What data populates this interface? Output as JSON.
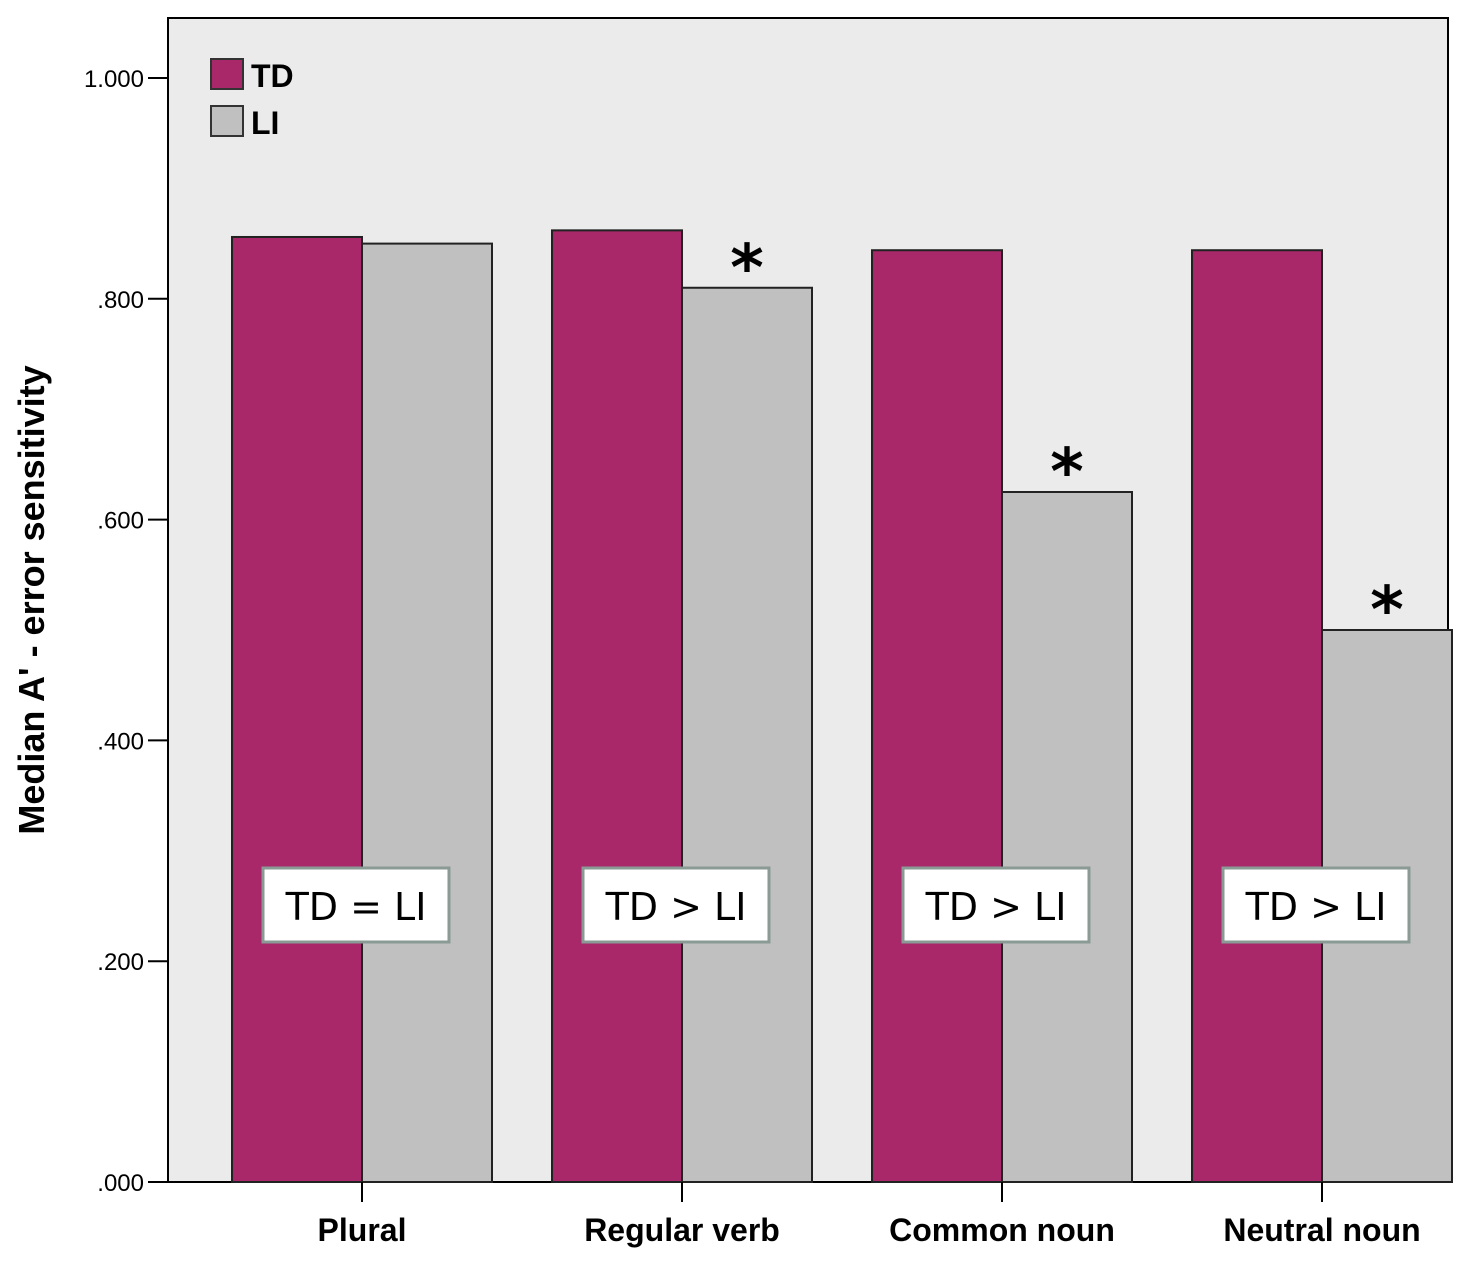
{
  "chart_data": {
    "type": "bar",
    "title": "",
    "xlabel": "",
    "ylabel": "Median A' - error sensitivity",
    "ylim": [
      0,
      1.05
    ],
    "yticks": [
      0,
      0.2,
      0.4,
      0.6,
      0.8,
      1.0
    ],
    "ytick_labels": [
      ".000",
      ".200",
      ".400",
      ".600",
      ".800",
      "1.000"
    ],
    "categories": [
      "Plural",
      "Regular verb",
      "Common noun",
      "Neutral noun"
    ],
    "series": [
      {
        "name": "TD",
        "color": "#a8286a",
        "values": [
          0.856,
          0.862,
          0.844,
          0.844
        ]
      },
      {
        "name": "LI",
        "color": "#c0c0c0",
        "values": [
          0.85,
          0.81,
          0.625,
          0.5
        ]
      }
    ],
    "annotations": {
      "significance_marker": "*",
      "significant": [
        false,
        true,
        true,
        true
      ],
      "comparison_labels": [
        "TD = LI",
        "TD > LI",
        "TD > LI",
        "TD > LI"
      ]
    },
    "legend_position": "top-left"
  }
}
